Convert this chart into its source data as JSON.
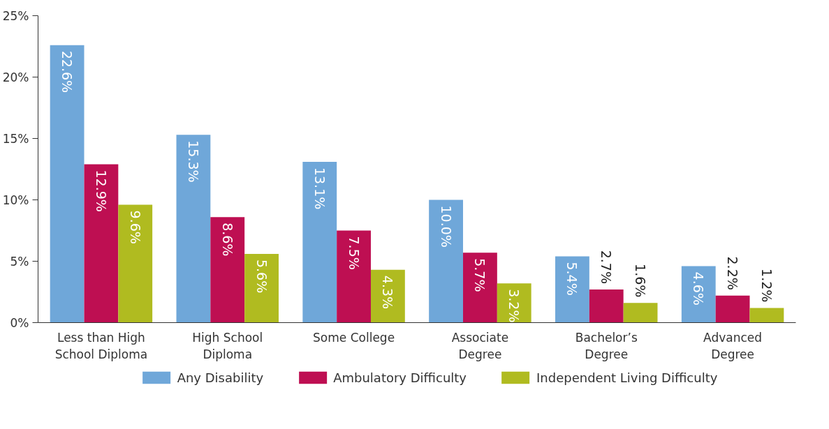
{
  "chart_data": {
    "type": "bar",
    "categories": [
      "Less than High School Diploma",
      "High School Diploma",
      "Some College",
      "Associate Degree",
      "Bachelor’s Degree",
      "Advanced Degree"
    ],
    "series": [
      {
        "name": "Any Disability",
        "color": "#6fa7d9",
        "values": [
          22.6,
          15.3,
          13.1,
          10.0,
          5.4,
          4.6
        ],
        "value_labels": [
          "22.6%",
          "15.3%",
          "13.1%",
          "10.0%",
          "5.4%",
          "4.6%"
        ]
      },
      {
        "name": "Ambulatory Difficulty",
        "color": "#be0f52",
        "values": [
          12.9,
          8.6,
          7.5,
          5.7,
          2.7,
          2.2
        ],
        "value_labels": [
          "12.9%",
          "8.6%",
          "7.5%",
          "5.7%",
          "2.7%",
          "2.2%"
        ]
      },
      {
        "name": "Independent Living Difficulty",
        "color": "#b0bb20",
        "values": [
          9.6,
          5.6,
          4.3,
          3.2,
          1.6,
          1.2
        ],
        "value_labels": [
          "9.6%",
          "5.6%",
          "4.3%",
          "3.2%",
          "1.6%",
          "1.2%"
        ]
      }
    ],
    "ylim": [
      0,
      25
    ],
    "yticks": [
      {
        "value": 0,
        "label": "0%"
      },
      {
        "value": 5,
        "label": "5%"
      },
      {
        "value": 10,
        "label": "10%"
      },
      {
        "value": 15,
        "label": "15%"
      },
      {
        "value": 20,
        "label": "20%"
      },
      {
        "value": 25,
        "label": "25%"
      }
    ],
    "grid": false,
    "legend": "bottom"
  }
}
